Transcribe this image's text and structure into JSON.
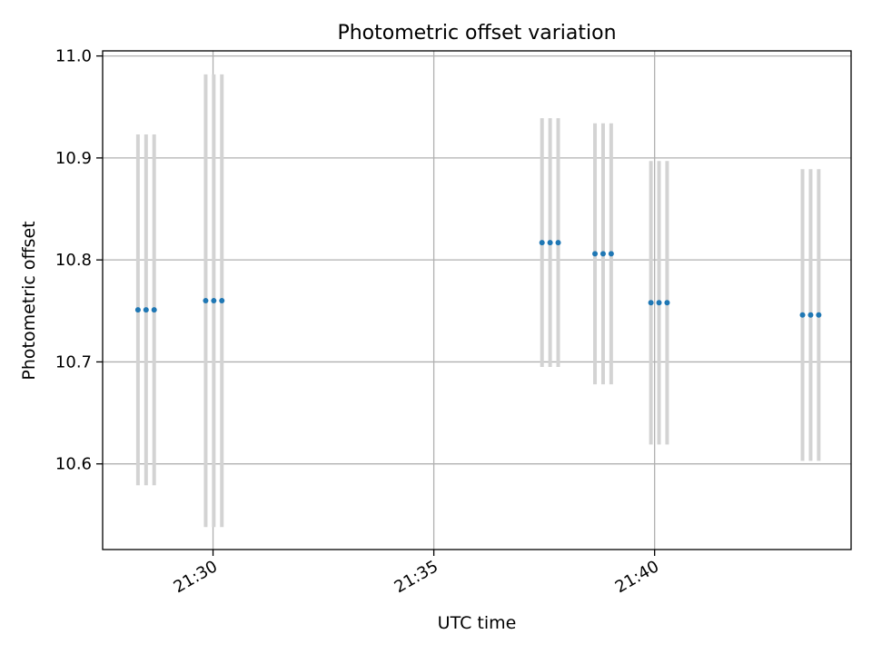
{
  "chart_data": {
    "type": "scatter",
    "title": "Photometric offset variation",
    "xlabel": "UTC time",
    "ylabel": "Photometric offset",
    "x_tick_labels": [
      "21:30",
      "21:35",
      "21:40"
    ],
    "x_tick_minutes_after_2125": [
      5,
      10,
      15
    ],
    "y_tick_labels": [
      "10.6",
      "10.7",
      "10.8",
      "10.9",
      "11.0"
    ],
    "y_ticks": [
      10.6,
      10.7,
      10.8,
      10.9,
      11.0
    ],
    "xlim_minutes_after_2125": [
      2.5,
      19.45
    ],
    "ylim": [
      10.516,
      11.005
    ],
    "grid": true,
    "marker_color": "#1f77b4",
    "errorbar_color": "#d3d3d3",
    "points": [
      {
        "t": "21:28:18",
        "y": 10.751,
        "yerr": 0.172
      },
      {
        "t": "21:28:29",
        "y": 10.751,
        "yerr": 0.172
      },
      {
        "t": "21:28:40",
        "y": 10.751,
        "yerr": 0.172
      },
      {
        "t": "21:29:50",
        "y": 10.76,
        "yerr": 0.222
      },
      {
        "t": "21:30:01",
        "y": 10.76,
        "yerr": 0.222
      },
      {
        "t": "21:30:12",
        "y": 10.76,
        "yerr": 0.222
      },
      {
        "t": "21:37:27",
        "y": 10.817,
        "yerr": 0.122
      },
      {
        "t": "21:37:38",
        "y": 10.817,
        "yerr": 0.122
      },
      {
        "t": "21:37:49",
        "y": 10.817,
        "yerr": 0.122
      },
      {
        "t": "21:38:39",
        "y": 10.806,
        "yerr": 0.128
      },
      {
        "t": "21:38:50",
        "y": 10.806,
        "yerr": 0.128
      },
      {
        "t": "21:39:01",
        "y": 10.806,
        "yerr": 0.128
      },
      {
        "t": "21:39:55",
        "y": 10.758,
        "yerr": 0.139
      },
      {
        "t": "21:40:06",
        "y": 10.758,
        "yerr": 0.139
      },
      {
        "t": "21:40:17",
        "y": 10.758,
        "yerr": 0.139
      },
      {
        "t": "21:43:21",
        "y": 10.746,
        "yerr": 0.143
      },
      {
        "t": "21:43:32",
        "y": 10.746,
        "yerr": 0.143
      },
      {
        "t": "21:43:43",
        "y": 10.746,
        "yerr": 0.143
      }
    ]
  }
}
